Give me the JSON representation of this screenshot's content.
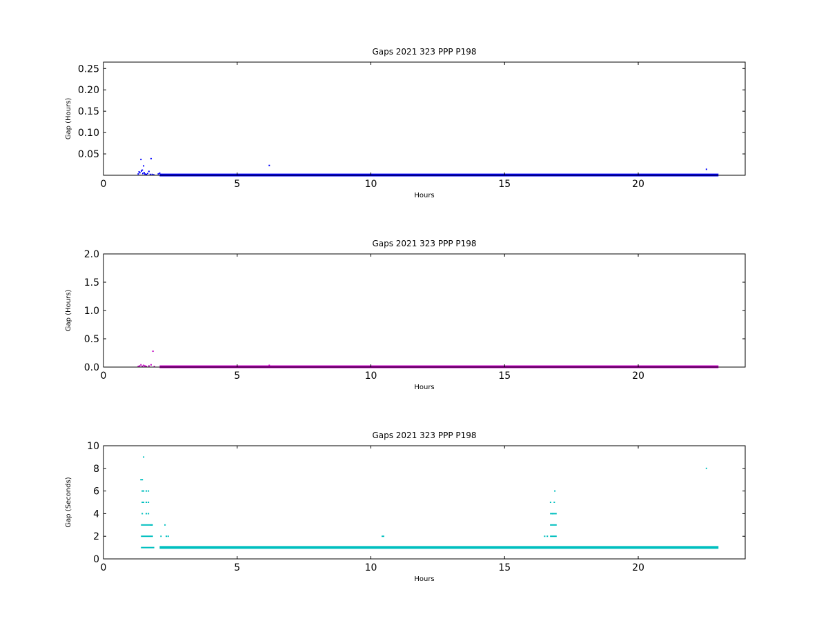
{
  "chart_data": [
    {
      "type": "scatter",
      "title": "Gaps 2021 323 PPP  P198",
      "xlabel": "Hours",
      "ylabel": "Gap (Hours)",
      "xlim": [
        0,
        24
      ],
      "ylim": [
        0,
        0.265
      ],
      "xticks": [
        "0",
        "5",
        "10",
        "15",
        "20"
      ],
      "yticks": [
        "0.05",
        "0.10",
        "0.15",
        "0.20",
        "0.25"
      ],
      "color": "#0000ff",
      "grid": false,
      "series": [
        {
          "baseline": {
            "x_start": 2.1,
            "x_end": 23.0,
            "y": 0.0003
          },
          "points": [
            [
              1.3,
              0.003
            ],
            [
              1.33,
              0.008
            ],
            [
              1.36,
              0.006
            ],
            [
              1.4,
              0.037
            ],
            [
              1.42,
              0.01
            ],
            [
              1.45,
              0.012
            ],
            [
              1.47,
              0.004
            ],
            [
              1.5,
              0.022
            ],
            [
              1.52,
              0.006
            ],
            [
              1.55,
              0.003
            ],
            [
              1.6,
              0.002
            ],
            [
              1.65,
              0.004
            ],
            [
              1.7,
              0.009
            ],
            [
              1.75,
              0.002
            ],
            [
              1.78,
              0.039
            ],
            [
              1.82,
              0.002
            ],
            [
              1.88,
              0.001
            ],
            [
              2.05,
              0.003
            ],
            [
              2.1,
              0.005
            ],
            [
              6.2,
              0.023
            ],
            [
              22.55,
              0.014
            ]
          ]
        }
      ]
    },
    {
      "type": "scatter",
      "title": "Gaps 2021 323 PPP  P198",
      "xlabel": "Hours",
      "ylabel": "Gap (Hours)",
      "xlim": [
        0,
        24
      ],
      "ylim": [
        0,
        2.0
      ],
      "xticks": [
        "0",
        "5",
        "10",
        "15",
        "20"
      ],
      "yticks": [
        "0.0",
        "0.5",
        "1.0",
        "1.5",
        "2.0"
      ],
      "color": "#bf00bf",
      "grid": false,
      "series": [
        {
          "baseline": {
            "x_start": 2.1,
            "x_end": 23.0,
            "y": 0.003
          },
          "points": [
            [
              1.3,
              0.01
            ],
            [
              1.35,
              0.02
            ],
            [
              1.4,
              0.04
            ],
            [
              1.45,
              0.015
            ],
            [
              1.5,
              0.03
            ],
            [
              1.55,
              0.02
            ],
            [
              1.6,
              0.01
            ],
            [
              1.7,
              0.02
            ],
            [
              1.78,
              0.04
            ],
            [
              1.85,
              0.28
            ],
            [
              1.9,
              0.01
            ],
            [
              6.2,
              0.03
            ]
          ]
        }
      ]
    },
    {
      "type": "scatter",
      "title": "Gaps 2021 323 PPP  P198",
      "xlabel": "Hours",
      "ylabel": "Gap (Seconds)",
      "xlim": [
        0,
        24
      ],
      "ylim": [
        0,
        10
      ],
      "xticks": [
        "0",
        "5",
        "10",
        "15",
        "20"
      ],
      "yticks": [
        "0",
        "2",
        "4",
        "6",
        "8",
        "10"
      ],
      "color": "#00bfbf",
      "grid": false,
      "series": [
        {
          "baseline": {
            "x_start": 2.1,
            "x_end": 23.0,
            "y": 1
          },
          "clusters": [
            {
              "x_start": 1.4,
              "x_end": 1.9,
              "y": 1
            },
            {
              "x_start": 1.4,
              "x_end": 1.85,
              "y": 2
            },
            {
              "x_start": 1.4,
              "x_end": 1.85,
              "y": 3
            },
            {
              "x_start": 10.4,
              "x_end": 10.5,
              "y": 2
            },
            {
              "x_start": 16.7,
              "x_end": 16.95,
              "y": 2
            },
            {
              "x_start": 16.7,
              "x_end": 16.95,
              "y": 3
            },
            {
              "x_start": 16.7,
              "x_end": 16.95,
              "y": 4
            }
          ],
          "points": [
            [
              1.4,
              7
            ],
            [
              1.45,
              7
            ],
            [
              1.5,
              9
            ],
            [
              1.45,
              6
            ],
            [
              1.5,
              6
            ],
            [
              1.6,
              6
            ],
            [
              1.68,
              6
            ],
            [
              1.45,
              5
            ],
            [
              1.5,
              5
            ],
            [
              1.6,
              5
            ],
            [
              1.68,
              5
            ],
            [
              1.45,
              4
            ],
            [
              1.6,
              4
            ],
            [
              1.68,
              4
            ],
            [
              1.78,
              3
            ],
            [
              2.15,
              2
            ],
            [
              2.3,
              3
            ],
            [
              2.35,
              2
            ],
            [
              2.42,
              2
            ],
            [
              16.5,
              2
            ],
            [
              16.6,
              2
            ],
            [
              16.72,
              5
            ],
            [
              16.86,
              5
            ],
            [
              16.88,
              6
            ],
            [
              16.8,
              4
            ],
            [
              22.55,
              8
            ]
          ]
        }
      ]
    }
  ]
}
